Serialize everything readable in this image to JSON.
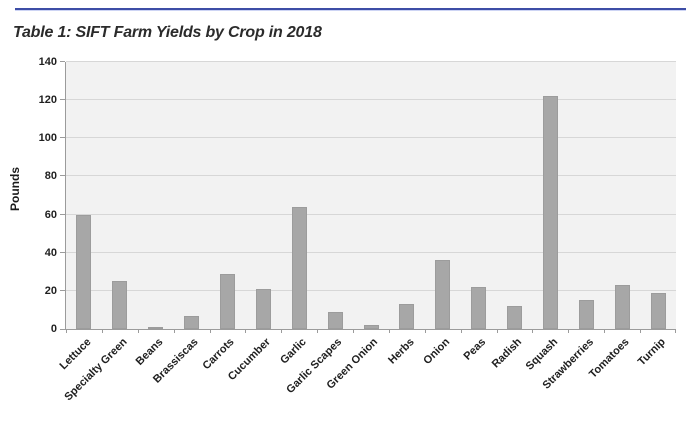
{
  "page": {
    "title": "Table 1: SIFT Farm Yields by Crop in 2018"
  },
  "chart_data": {
    "type": "bar",
    "title": "Table 1: SIFT Farm Yields by Crop in 2018",
    "categories": [
      "Lettuce",
      "Specialty Green",
      "Beans",
      "Brassiscas",
      "Carrots",
      "Cucumber",
      "Garlic",
      "Garlic Scapes",
      "Green Onion",
      "Herbs",
      "Onion",
      "Peas",
      "Radish",
      "Squash",
      "Strawberries",
      "Tomatoes",
      "Turnip"
    ],
    "values": [
      60,
      25,
      1,
      7,
      29,
      21,
      64,
      9,
      2,
      13,
      36,
      22,
      12,
      122,
      15,
      23,
      19
    ],
    "xlabel": "",
    "ylabel": "Pounds",
    "ylim": [
      0,
      140
    ],
    "yticks": [
      0,
      20,
      40,
      60,
      80,
      100,
      120,
      140
    ],
    "grid": true,
    "legend": false,
    "x_label_rotation_deg": 45,
    "colors": {
      "bar_fill": "#a7a7a7",
      "bar_border": "#9c9c9c",
      "plot_background": "#f2f2f2",
      "gridline": "#d7d7d7",
      "axis_line": "#9b9b9b",
      "text": "#1f1f1f",
      "header_rule_blue": "#3d4da6",
      "header_rule_light": "#cdd4f4"
    }
  }
}
